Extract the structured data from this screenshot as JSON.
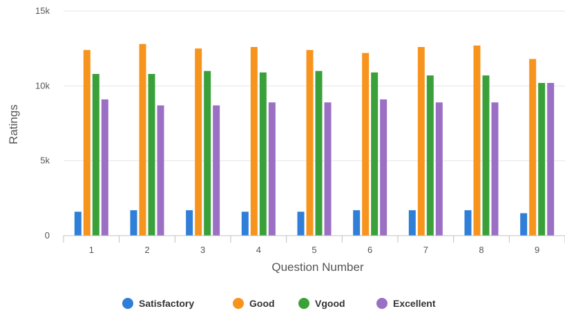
{
  "chart_data": {
    "type": "bar",
    "xlabel": "Question Number",
    "ylabel": "Ratings",
    "ylim": [
      0,
      15000
    ],
    "yticks": [
      0,
      5000,
      10000,
      15000
    ],
    "ytick_labels": [
      "0",
      "5k",
      "10k",
      "15k"
    ],
    "grid": true,
    "legend_position": "bottom-center",
    "categories": [
      "1",
      "2",
      "3",
      "4",
      "5",
      "6",
      "7",
      "8",
      "9"
    ],
    "series": [
      {
        "name": "Satisfactory",
        "color": "#2f7ed8",
        "values": [
          1600,
          1700,
          1700,
          1600,
          1600,
          1700,
          1700,
          1700,
          1500
        ]
      },
      {
        "name": "Good",
        "color": "#f7941d",
        "values": [
          12400,
          12800,
          12500,
          12600,
          12400,
          12200,
          12600,
          12700,
          11800
        ]
      },
      {
        "name": "Vgood",
        "color": "#3aa13a",
        "values": [
          10800,
          10800,
          11000,
          10900,
          11000,
          10900,
          10700,
          10700,
          10200
        ]
      },
      {
        "name": "Excellent",
        "color": "#9b6fc4",
        "values": [
          9100,
          8700,
          8700,
          8900,
          8900,
          9100,
          8900,
          8900,
          10200
        ]
      }
    ]
  }
}
